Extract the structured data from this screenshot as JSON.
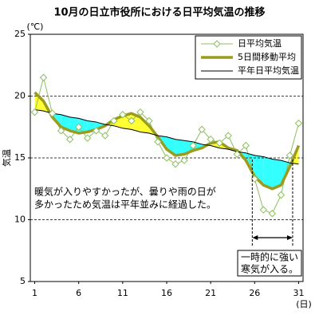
{
  "chart_data": {
    "type": "line",
    "title": "10月の日立市役所における日平均気温の推移",
    "y_unit": "(℃)",
    "y_label": "気温",
    "x_unit": "(日)",
    "x": [
      1,
      2,
      3,
      4,
      5,
      6,
      7,
      8,
      9,
      10,
      11,
      12,
      13,
      14,
      15,
      16,
      17,
      18,
      19,
      20,
      21,
      22,
      23,
      24,
      25,
      26,
      27,
      28,
      29,
      30,
      31
    ],
    "series": [
      {
        "name": "日平均気温",
        "color": "#8cc060",
        "values": [
          18.7,
          21.5,
          18.6,
          17.2,
          16.5,
          17.5,
          16.6,
          17.2,
          16.8,
          18.0,
          18.5,
          18.0,
          18.7,
          18.0,
          16.3,
          15.0,
          14.5,
          14.8,
          16.0,
          17.3,
          16.5,
          16.2,
          16.8,
          15.3,
          16.0,
          13.3,
          10.8,
          10.5,
          12.0,
          15.2,
          17.8
        ]
      },
      {
        "name": "5日間移動平均",
        "color": "#9b9b1e",
        "values": [
          20.3,
          19.6,
          18.3,
          17.5,
          17.2,
          17.0,
          17.1,
          17.3,
          17.6,
          18.1,
          18.4,
          18.6,
          18.3,
          17.6,
          16.7,
          15.7,
          15.2,
          15.3,
          15.6,
          15.8,
          16.2,
          16.3,
          15.8,
          15.6,
          14.8,
          13.5,
          12.8,
          12.5,
          12.8,
          14.3,
          16.0
        ]
      },
      {
        "name": "平年日平均気温",
        "color": "#000000",
        "values": [
          18.9,
          18.8,
          18.6,
          18.5,
          18.3,
          18.2,
          18.0,
          17.9,
          17.7,
          17.6,
          17.4,
          17.3,
          17.1,
          17.0,
          16.8,
          16.7,
          16.5,
          16.4,
          16.3,
          16.1,
          16.0,
          15.8,
          15.7,
          15.5,
          15.4,
          15.2,
          15.1,
          14.9,
          14.8,
          14.6,
          14.5
        ]
      }
    ],
    "fill_above_color": "#ffff33",
    "fill_below_color": "#33ffff",
    "xlim": [
      0.5,
      31.5
    ],
    "xticks": [
      1,
      6,
      11,
      16,
      21,
      26,
      31
    ],
    "ylim": [
      5,
      25
    ],
    "yticks": [
      5,
      10,
      15,
      20,
      25
    ],
    "grid": true,
    "legend": "upper right",
    "annotations": [
      {
        "lines": [
          "暖気が入りやすかったが、曇りや雨の日が",
          "多かったため気温は平年並みに経過した。"
        ]
      },
      {
        "lines": [
          "一時的に強い",
          "寒気が入る。"
        ]
      }
    ]
  }
}
